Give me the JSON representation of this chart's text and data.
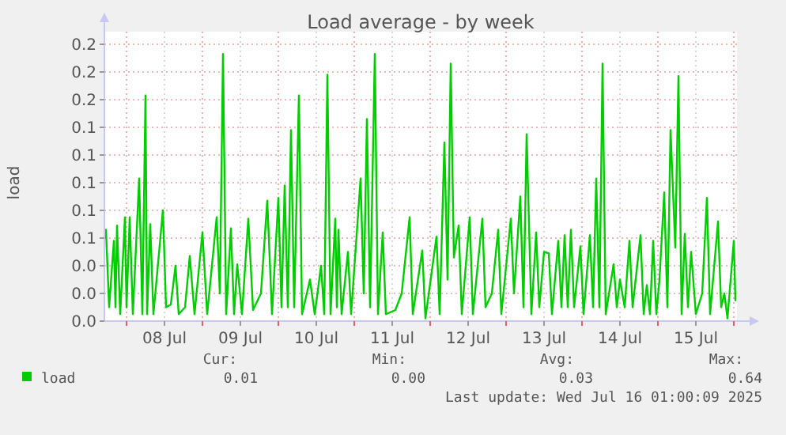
{
  "chart_data": {
    "type": "line",
    "title": "Load average - by week",
    "ylabel": "load",
    "xlim": [
      "2025-07-07T17:00",
      "2025-07-16T01:00"
    ],
    "xticks": [
      {
        "value": "2025-07-08T00:00",
        "label": null
      },
      {
        "value": "2025-07-08T12:00",
        "label": "08 Jul"
      },
      {
        "value": "2025-07-09T00:00",
        "label": null
      },
      {
        "value": "2025-07-09T12:00",
        "label": "09 Jul"
      },
      {
        "value": "2025-07-10T00:00",
        "label": null
      },
      {
        "value": "2025-07-10T12:00",
        "label": "10 Jul"
      },
      {
        "value": "2025-07-11T00:00",
        "label": null
      },
      {
        "value": "2025-07-11T12:00",
        "label": "11 Jul"
      },
      {
        "value": "2025-07-12T00:00",
        "label": null
      },
      {
        "value": "2025-07-12T12:00",
        "label": "12 Jul"
      },
      {
        "value": "2025-07-13T00:00",
        "label": null
      },
      {
        "value": "2025-07-13T12:00",
        "label": "13 Jul"
      },
      {
        "value": "2025-07-14T00:00",
        "label": null
      },
      {
        "value": "2025-07-14T12:00",
        "label": "14 Jul"
      },
      {
        "value": "2025-07-15T00:00",
        "label": null
      },
      {
        "value": "2025-07-15T12:00",
        "label": "15 Jul"
      },
      {
        "value": "2025-07-16T00:00",
        "label": null
      }
    ],
    "ylim": [
      0,
      0.2
    ],
    "yticks": [
      {
        "value": 0,
        "label": "0.0"
      },
      {
        "value": 0.02,
        "label": "0.0"
      },
      {
        "value": 0.04,
        "label": "0.0"
      },
      {
        "value": 0.06,
        "label": "0.1"
      },
      {
        "value": 0.08,
        "label": "0.1"
      },
      {
        "value": 0.1,
        "label": "0.1"
      },
      {
        "value": 0.12,
        "label": "0.1"
      },
      {
        "value": 0.14,
        "label": "0.1"
      },
      {
        "value": 0.16,
        "label": "0.2"
      },
      {
        "value": 0.18,
        "label": "0.2"
      },
      {
        "value": 0.2,
        "label": "0.2"
      }
    ],
    "grid": true,
    "legend": "bottom left",
    "annotations": [
      "Cur:",
      "Min:",
      "Avg:",
      "Max:",
      "0.01",
      "0.00",
      "0.03",
      "0.64",
      "Last update: Wed Jul 16 01:00:09 2025"
    ],
    "series": [
      {
        "name": "load",
        "color": "#00cc00",
        "x": [
          "2025-07-07T17:00",
          "2025-07-07T17:30",
          "2025-07-07T18:30",
          "2025-07-07T20:00",
          "2025-07-07T20:30",
          "2025-07-07T21:00",
          "2025-07-07T22:00",
          "2025-07-07T23:30",
          "2025-07-08T00:00",
          "2025-07-08T01:00",
          "2025-07-08T02:00",
          "2025-07-08T04:00",
          "2025-07-08T05:00",
          "2025-07-08T06:00",
          "2025-07-08T06:30",
          "2025-07-08T07:30",
          "2025-07-08T08:30",
          "2025-07-08T11:30",
          "2025-07-08T12:30",
          "2025-07-08T14:00",
          "2025-07-08T15:30",
          "2025-07-08T16:30",
          "2025-07-08T18:30",
          "2025-07-08T20:00",
          "2025-07-08T21:30",
          "2025-07-09T00:00",
          "2025-07-09T01:30",
          "2025-07-09T04:30",
          "2025-07-09T05:30",
          "2025-07-09T06:30",
          "2025-07-09T07:30",
          "2025-07-09T09:00",
          "2025-07-09T10:00",
          "2025-07-09T11:00",
          "2025-07-09T12:30",
          "2025-07-09T14:30",
          "2025-07-09T16:00",
          "2025-07-09T18:30",
          "2025-07-09T20:30",
          "2025-07-09T22:00",
          "2025-07-10T00:00",
          "2025-07-10T01:00",
          "2025-07-10T02:00",
          "2025-07-10T03:00",
          "2025-07-10T04:00",
          "2025-07-10T05:00",
          "2025-07-10T06:30",
          "2025-07-10T07:30",
          "2025-07-10T10:00",
          "2025-07-10T11:30",
          "2025-07-10T13:30",
          "2025-07-10T14:30",
          "2025-07-10T15:30",
          "2025-07-10T16:30",
          "2025-07-10T18:00",
          "2025-07-10T18:30",
          "2025-07-10T19:00",
          "2025-07-10T20:00",
          "2025-07-10T22:00",
          "2025-07-10T23:00",
          "2025-07-11T02:00",
          "2025-07-11T03:00",
          "2025-07-11T04:00",
          "2025-07-11T05:00",
          "2025-07-11T06:30",
          "2025-07-11T07:30",
          "2025-07-11T09:00",
          "2025-07-11T10:00",
          "2025-07-11T13:00",
          "2025-07-11T15:00",
          "2025-07-11T17:30",
          "2025-07-11T18:30",
          "2025-07-11T21:30",
          "2025-07-11T22:30",
          "2025-07-12T02:00",
          "2025-07-12T03:00",
          "2025-07-12T04:30",
          "2025-07-12T05:30",
          "2025-07-12T06:30",
          "2025-07-12T07:30",
          "2025-07-12T09:00",
          "2025-07-12T10:00",
          "2025-07-12T12:30",
          "2025-07-12T13:30",
          "2025-07-12T16:30",
          "2025-07-12T17:30",
          "2025-07-12T19:30",
          "2025-07-12T21:30",
          "2025-07-12T22:30",
          "2025-07-13T01:30",
          "2025-07-13T02:30",
          "2025-07-13T04:30",
          "2025-07-13T05:30",
          "2025-07-13T06:30",
          "2025-07-13T08:00",
          "2025-07-13T09:30",
          "2025-07-13T10:30",
          "2025-07-13T12:00",
          "2025-07-13T13:30",
          "2025-07-13T14:30",
          "2025-07-13T16:30",
          "2025-07-13T17:30",
          "2025-07-13T18:30",
          "2025-07-13T19:30",
          "2025-07-13T20:30",
          "2025-07-13T21:30",
          "2025-07-13T23:30",
          "2025-07-14T00:30",
          "2025-07-14T02:30",
          "2025-07-14T03:30",
          "2025-07-14T04:30",
          "2025-07-14T05:30",
          "2025-07-14T06:30",
          "2025-07-14T07:30",
          "2025-07-14T10:00",
          "2025-07-14T11:00",
          "2025-07-14T12:00",
          "2025-07-14T13:30",
          "2025-07-14T15:00",
          "2025-07-14T16:00",
          "2025-07-14T18:30",
          "2025-07-14T19:30",
          "2025-07-14T20:30",
          "2025-07-14T21:30",
          "2025-07-14T22:30",
          "2025-07-14T23:30",
          "2025-07-15T00:30",
          "2025-07-15T02:00",
          "2025-07-15T03:00",
          "2025-07-15T04:00",
          "2025-07-15T05:30",
          "2025-07-15T06:30",
          "2025-07-15T07:30",
          "2025-07-15T08:30",
          "2025-07-15T09:30",
          "2025-07-15T10:30",
          "2025-07-15T12:00",
          "2025-07-15T14:00",
          "2025-07-15T15:30",
          "2025-07-15T16:30",
          "2025-07-15T19:00",
          "2025-07-15T20:00",
          "2025-07-15T21:00",
          "2025-07-15T22:00",
          "2025-07-16T00:00",
          "2025-07-16T00:30"
        ],
        "values": [
          0.06,
          0.066,
          0.01,
          0.058,
          0.01,
          0.069,
          0.005,
          0.075,
          0.01,
          0.075,
          0.005,
          0.103,
          0.005,
          0.163,
          0.005,
          0.07,
          0.005,
          0.08,
          0.01,
          0.012,
          0.04,
          0.005,
          0.01,
          0.047,
          0.005,
          0.064,
          0.005,
          0.075,
          0.02,
          0.193,
          0.005,
          0.067,
          0.005,
          0.041,
          0.005,
          0.074,
          0.008,
          0.02,
          0.087,
          0.005,
          0.089,
          0.01,
          0.098,
          0.01,
          0.138,
          0.01,
          0.163,
          0.005,
          0.03,
          0.005,
          0.04,
          0.005,
          0.178,
          0.005,
          0.074,
          0.01,
          0.066,
          0.005,
          0.05,
          0.005,
          0.103,
          0.02,
          0.146,
          0.01,
          0.193,
          0.005,
          0.064,
          0.005,
          0.008,
          0.02,
          0.075,
          0.005,
          0.051,
          0.002,
          0.061,
          0.005,
          0.129,
          0.03,
          0.186,
          0.046,
          0.069,
          0.005,
          0.075,
          0.005,
          0.074,
          0.01,
          0.02,
          0.066,
          0.005,
          0.074,
          0.02,
          0.09,
          0.01,
          0.135,
          0.005,
          0.064,
          0.01,
          0.05,
          0.049,
          0.005,
          0.058,
          0.01,
          0.062,
          0.01,
          0.066,
          0.01,
          0.054,
          0.005,
          0.062,
          0.01,
          0.103,
          0.01,
          0.186,
          0.005,
          0.041,
          0.01,
          0.03,
          0.01,
          0.058,
          0.01,
          0.062,
          0.005,
          0.026,
          0.005,
          0.058,
          0.005,
          0.03,
          0.093,
          0.01,
          0.138,
          0.053,
          0.177,
          0.005,
          0.063,
          0.01,
          0.05,
          0.005,
          0.02,
          0.089,
          0.005,
          0.072,
          0.01,
          0.02,
          0.002,
          0.058,
          0.015
        ]
      }
    ]
  }
}
